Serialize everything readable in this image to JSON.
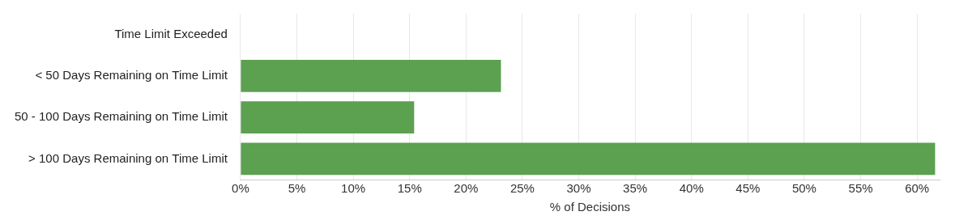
{
  "chart_data": {
    "type": "bar",
    "orientation": "horizontal",
    "categories": [
      "Time Limit Exceeded",
      "< 50 Days Remaining on Time Limit",
      "50 - 100 Days Remaining on Time Limit",
      "> 100 Days Remaining on Time Limit"
    ],
    "values": [
      0,
      23.1,
      15.4,
      61.6
    ],
    "color": "#5ba150",
    "xlabel": "% of Decisions",
    "xlim": [
      0,
      62
    ],
    "xticks": [
      {
        "value": 0,
        "label": "0%"
      },
      {
        "value": 5,
        "label": "5%"
      },
      {
        "value": 10,
        "label": "10%"
      },
      {
        "value": 15,
        "label": "15%"
      },
      {
        "value": 20,
        "label": "20%"
      },
      {
        "value": 25,
        "label": "25%"
      },
      {
        "value": 30,
        "label": "30%"
      },
      {
        "value": 35,
        "label": "35%"
      },
      {
        "value": 40,
        "label": "40%"
      },
      {
        "value": 45,
        "label": "45%"
      },
      {
        "value": 50,
        "label": "50%"
      },
      {
        "value": 55,
        "label": "55%"
      },
      {
        "value": 60,
        "label": "60%"
      }
    ],
    "grid": true
  }
}
